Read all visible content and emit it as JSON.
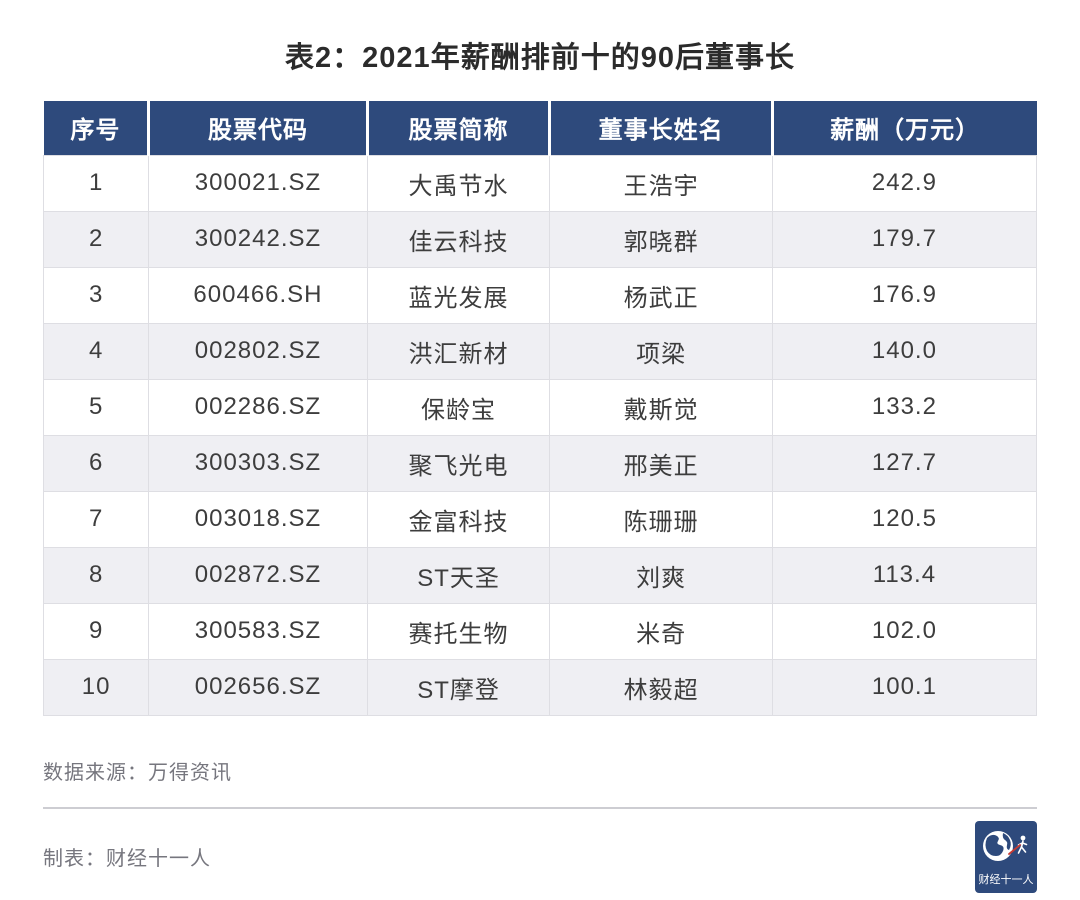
{
  "page": {
    "title": "表2：2021年薪酬排前十的90后董事长"
  },
  "chart_data": {
    "type": "table",
    "title": "表2：2021年薪酬排前十的90后董事长",
    "columns": [
      "序号",
      "股票代码",
      "股票简称",
      "董事长姓名",
      "薪酬（万元）"
    ],
    "rows": [
      [
        "1",
        "300021.SZ",
        "大禹节水",
        "王浩宇",
        "242.9"
      ],
      [
        "2",
        "300242.SZ",
        "佳云科技",
        "郭晓群",
        "179.7"
      ],
      [
        "3",
        "600466.SH",
        "蓝光发展",
        "杨武正",
        "176.9"
      ],
      [
        "4",
        "002802.SZ",
        "洪汇新材",
        "项梁",
        "140.0"
      ],
      [
        "5",
        "002286.SZ",
        "保龄宝",
        "戴斯觉",
        "133.2"
      ],
      [
        "6",
        "300303.SZ",
        "聚飞光电",
        "邢美正",
        "127.7"
      ],
      [
        "7",
        "003018.SZ",
        "金富科技",
        "陈珊珊",
        "120.5"
      ],
      [
        "8",
        "002872.SZ",
        "ST天圣",
        "刘爽",
        "113.4"
      ],
      [
        "9",
        "300583.SZ",
        "赛托生物",
        "米奇",
        "102.0"
      ],
      [
        "10",
        "002656.SZ",
        "ST摩登",
        "林毅超",
        "100.1"
      ]
    ],
    "salary_values": [
      242.9,
      179.7,
      176.9,
      140.0,
      133.2,
      127.7,
      120.5,
      113.4,
      102.0,
      100.1
    ],
    "salary_unit": "万元"
  },
  "footer": {
    "source": "数据来源：万得资讯",
    "credit": "制表：财经十一人",
    "logo_text": "财经十一人"
  },
  "colors": {
    "header_bg": "#2E4A7C",
    "row_alt": "#EFEFF3",
    "border": "#DEDEE3",
    "title_text": "#2B2B2B",
    "body_text": "#3D3D3D",
    "note_text": "#76767E",
    "logo_bg": "#2E4A7C",
    "logo_accent": "#C63A32"
  }
}
